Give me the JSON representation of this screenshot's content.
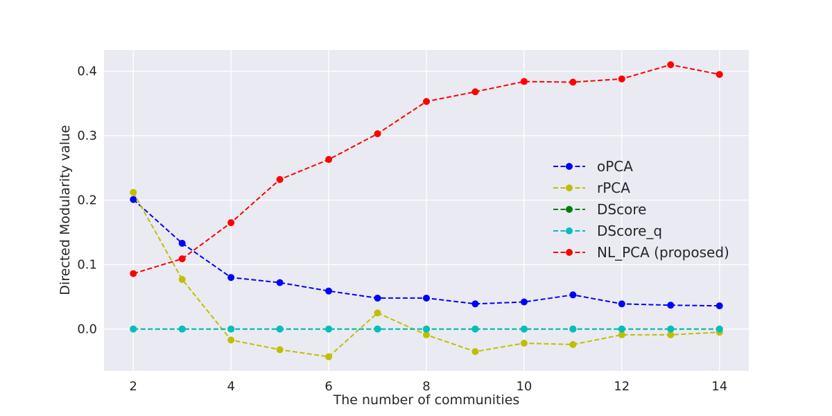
{
  "chart_data": {
    "type": "line",
    "title": "",
    "xlabel": "The number of communities",
    "ylabel": "Directed Modularity value",
    "x": [
      2,
      3,
      4,
      5,
      6,
      7,
      8,
      9,
      10,
      11,
      12,
      13,
      14
    ],
    "xlim": [
      1.4,
      14.6
    ],
    "ylim": [
      -0.065,
      0.433
    ],
    "xticks": [
      2,
      4,
      6,
      8,
      10,
      12,
      14
    ],
    "yticks": [
      0.0,
      0.1,
      0.2,
      0.3,
      0.4
    ],
    "ytick_labels": [
      "0.0",
      "0.1",
      "0.2",
      "0.3",
      "0.4"
    ],
    "grid": true,
    "legend_position": "center-right",
    "series": [
      {
        "name": "oPCA",
        "color": "#0000ff",
        "style": "dashed",
        "marker": "circle",
        "values": [
          0.201,
          0.133,
          0.08,
          0.072,
          0.059,
          0.048,
          0.048,
          0.039,
          0.042,
          0.053,
          0.039,
          0.037,
          0.036
        ]
      },
      {
        "name": "rPCA",
        "color": "#bfbf00",
        "style": "dashed",
        "marker": "circle",
        "values": [
          0.212,
          0.077,
          -0.017,
          -0.032,
          -0.043,
          0.025,
          -0.009,
          -0.035,
          -0.022,
          -0.024,
          -0.009,
          -0.009,
          -0.005
        ]
      },
      {
        "name": "DScore",
        "color": "#008000",
        "style": "dashed",
        "marker": "circle",
        "values": [
          0,
          0,
          0,
          0,
          0,
          0,
          0,
          0,
          0,
          0,
          0,
          0,
          0
        ]
      },
      {
        "name": "DScore_q",
        "color": "#00bfbf",
        "style": "dashed",
        "marker": "circle",
        "values": [
          0,
          0,
          0,
          0,
          0,
          0,
          0,
          0,
          0,
          0,
          0,
          0,
          0
        ]
      },
      {
        "name": "NL_PCA (proposed)",
        "color": "#ff0000",
        "style": "dashed",
        "marker": "circle",
        "values": [
          0.086,
          0.109,
          0.165,
          0.232,
          0.263,
          0.303,
          0.353,
          0.368,
          0.384,
          0.383,
          0.388,
          0.41,
          0.395
        ]
      }
    ]
  }
}
